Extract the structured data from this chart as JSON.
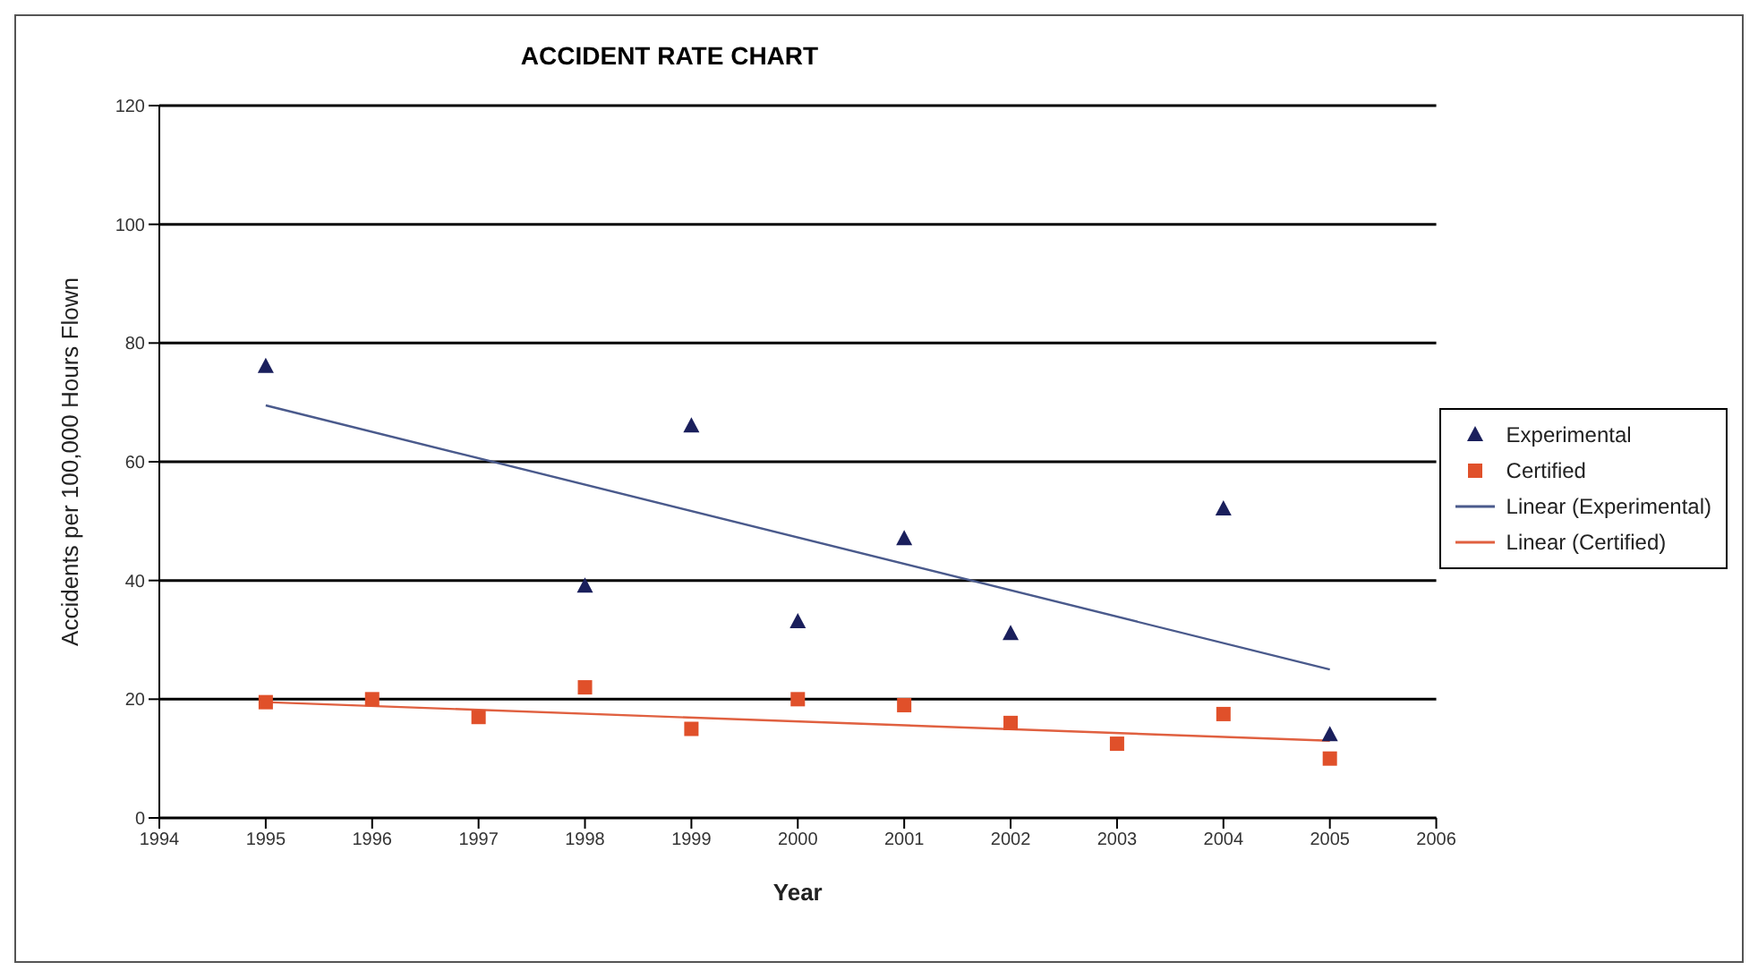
{
  "chart_data": {
    "type": "scatter",
    "title": "ACCIDENT RATE CHART",
    "xlabel": "Year",
    "ylabel": "Accidents per 100,000 Hours Flown",
    "x": [
      1995,
      1996,
      1997,
      1998,
      1999,
      2000,
      2001,
      2002,
      2003,
      2004,
      2005
    ],
    "series": [
      {
        "name": "Experimental",
        "marker": "triangle",
        "color": "#1a1f5c",
        "x": [
          1995,
          1998,
          1999,
          2000,
          2001,
          2002,
          2004,
          2005
        ],
        "values": [
          76,
          39,
          66,
          33,
          47,
          31,
          52,
          14
        ]
      },
      {
        "name": "Certified",
        "marker": "square",
        "color": "#e0502a",
        "values": [
          19.5,
          20,
          17,
          22,
          15,
          20,
          19,
          16,
          12.5,
          17.5,
          10
        ]
      },
      {
        "name": "Linear (Experimental)",
        "type": "line",
        "marker": "none",
        "color": "#4a5a8c",
        "x": [
          1995,
          2005
        ],
        "values": [
          69.5,
          25
        ]
      },
      {
        "name": "Linear (Certified)",
        "type": "line",
        "marker": "none",
        "color": "#e06040",
        "x": [
          1995,
          2005
        ],
        "values": [
          19.5,
          13
        ]
      }
    ],
    "xlim": [
      1994,
      2006
    ],
    "xticks": [
      1994,
      1995,
      1996,
      1997,
      1998,
      1999,
      2000,
      2001,
      2002,
      2003,
      2004,
      2005,
      2006
    ],
    "ylim": [
      0,
      120
    ],
    "yticks": [
      0,
      20,
      40,
      60,
      80,
      100,
      120
    ],
    "grid": "y",
    "legend": "right"
  }
}
